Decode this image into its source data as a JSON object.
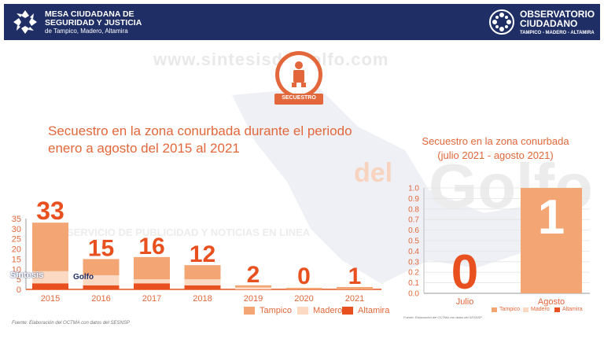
{
  "header": {
    "left_title_line1": "MESA CIUDADANA DE",
    "left_title_line2": "SEGURIDAD Y JUSTICIA",
    "left_subtitle": "de Tampico, Madero, Altamira",
    "right_title_line1": "OBSERVATORIO",
    "right_title_line2": "CIUDADANO",
    "right_subtitle": "TAMPICO - MADERO - ALTAMIRA"
  },
  "badge_label": "SECUESTRO",
  "watermark": {
    "url": "www.sintesisdelgolfo.com",
    "tagline": "SERVICIO DE PUBLICIDAD Y NOTICIAS EN LINEA",
    "brand_del": "del",
    "brand_golfo": "Golfo",
    "corner_brand_1": "Síntesis",
    "corner_brand_2": "Golfo"
  },
  "colors": {
    "tampico": "#f4a574",
    "madero": "#fbd9c2",
    "altamira": "#e8501f",
    "accent": "#e2673a",
    "header_bg": "#1f2f66"
  },
  "chart_data": [
    {
      "type": "bar",
      "stacked": true,
      "title_line1": "Secuestro en la zona conurbada durante el periodo",
      "title_line2": "enero a agosto del 2015 al 2021",
      "categories": [
        "2015",
        "2016",
        "2017",
        "2018",
        "2019",
        "2020",
        "2021"
      ],
      "totals": [
        33,
        15,
        16,
        12,
        2,
        0,
        1
      ],
      "series": [
        {
          "name": "Tampico",
          "values": [
            24,
            8,
            11,
            7,
            1,
            0,
            1
          ]
        },
        {
          "name": "Madero",
          "values": [
            6,
            5,
            2,
            3,
            1,
            0,
            0
          ]
        },
        {
          "name": "Altamira",
          "values": [
            3,
            2,
            3,
            2,
            0,
            0,
            0
          ]
        }
      ],
      "yticks": [
        "0",
        "5",
        "10",
        "15",
        "20",
        "25",
        "30",
        "35"
      ],
      "ylim": [
        0,
        35
      ],
      "grid": false,
      "legend_position": "bottom-right",
      "source": "Fuente: Elaboración del OCTMA con datos del SESNSP"
    },
    {
      "type": "bar",
      "stacked": true,
      "title_line1": "Secuestro en la zona conurbada",
      "title_line2": "(julio 2021 - agosto 2021)",
      "categories": [
        "Julio",
        "Agosto"
      ],
      "totals": [
        0,
        1
      ],
      "series": [
        {
          "name": "Tampico",
          "values": [
            0,
            1
          ]
        },
        {
          "name": "Madero",
          "values": [
            0,
            0
          ]
        },
        {
          "name": "Altamira",
          "values": [
            0,
            0
          ]
        }
      ],
      "yticks": [
        "0.0",
        "0.1",
        "0.2",
        "0.3",
        "0.4",
        "0.5",
        "0.6",
        "0.7",
        "0.8",
        "0.9",
        "1.0"
      ],
      "ylim": [
        0,
        1
      ],
      "grid": true,
      "legend_position": "bottom",
      "source": "Fuente: Elaboración del OCTMA con datos del SESNSP"
    }
  ]
}
